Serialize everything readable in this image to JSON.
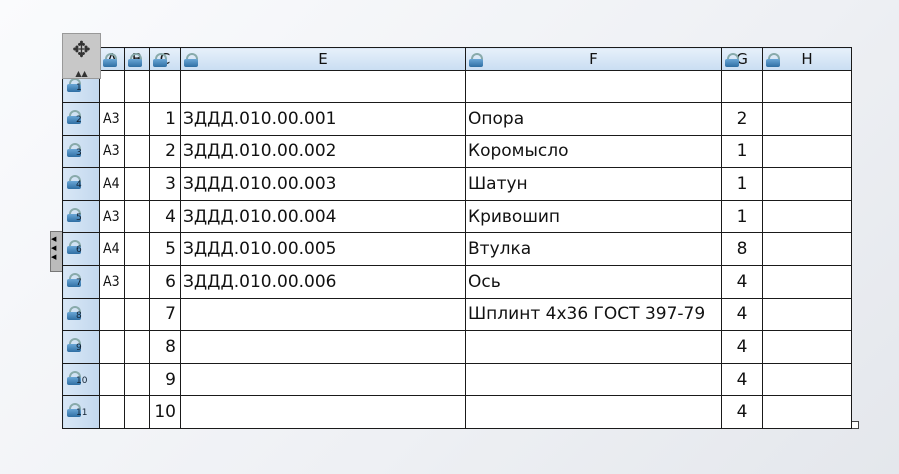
{
  "columns": [
    "A",
    "B",
    "C",
    "E",
    "F",
    "G",
    "H"
  ],
  "rows": [
    {
      "n": "1",
      "a": "",
      "c": "",
      "e": "",
      "f": "",
      "g": ""
    },
    {
      "n": "2",
      "a": "А3",
      "c": "1",
      "e": "ЗДДД.010.00.001",
      "f": "Опора",
      "g": "2"
    },
    {
      "n": "3",
      "a": "А3",
      "c": "2",
      "e": "ЗДДД.010.00.002",
      "f": "Коромысло",
      "g": "1"
    },
    {
      "n": "4",
      "a": "А4",
      "c": "3",
      "e": "ЗДДД.010.00.003",
      "f": "Шатун",
      "g": "1"
    },
    {
      "n": "5",
      "a": "А3",
      "c": "4",
      "e": "ЗДДД.010.00.004",
      "f": "Кривошип",
      "g": "1"
    },
    {
      "n": "6",
      "a": "А4",
      "c": "5",
      "e": "ЗДДД.010.00.005",
      "f": "Втулка",
      "g": "8"
    },
    {
      "n": "7",
      "a": "А3",
      "c": "6",
      "e": "ЗДДД.010.00.006",
      "f": "Ось",
      "g": "4"
    },
    {
      "n": "8",
      "a": "",
      "c": "7",
      "e": "",
      "f": "Шплинт 4x36 ГОСТ 397-79",
      "g": "4"
    },
    {
      "n": "9",
      "a": "",
      "c": "8",
      "e": "",
      "f": "",
      "g": "4"
    },
    {
      "n": "10",
      "a": "",
      "c": "9",
      "e": "",
      "f": "",
      "g": "4"
    },
    {
      "n": "11",
      "a": "",
      "c": "10",
      "e": "",
      "f": "",
      "g": "4"
    }
  ],
  "icons": {
    "move": "move-arrows-icon",
    "lock": "lock-icon"
  }
}
